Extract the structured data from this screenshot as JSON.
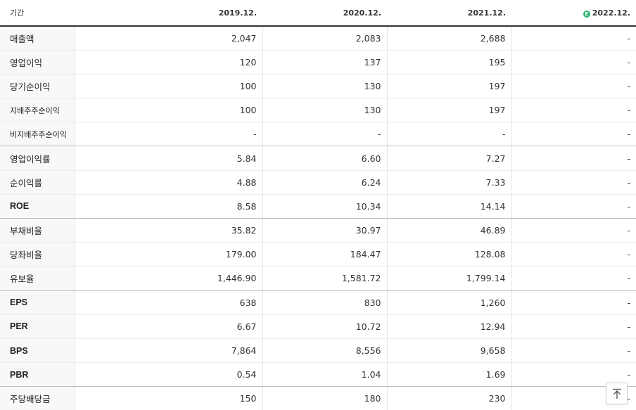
{
  "header": {
    "period_label": "기간",
    "columns": [
      "2019.12.",
      "2020.12.",
      "2021.12.",
      "2022.12."
    ],
    "estimate_badge": "E",
    "estimate_color": "#2bb673"
  },
  "rows": [
    {
      "label": "매출액",
      "values": [
        "2,047",
        "2,083",
        "2,688",
        "-"
      ]
    },
    {
      "label": "영업이익",
      "values": [
        "120",
        "137",
        "195",
        "-"
      ]
    },
    {
      "label": "당기순이익",
      "values": [
        "100",
        "130",
        "197",
        "-"
      ]
    },
    {
      "label": "지배주주순이익",
      "values": [
        "100",
        "130",
        "197",
        "-"
      ]
    },
    {
      "label": "비지배주주순이익",
      "values": [
        "-",
        "-",
        "-",
        "-"
      ]
    },
    {
      "label": "영업이익률",
      "values": [
        "5.84",
        "6.60",
        "7.27",
        "-"
      ]
    },
    {
      "label": "순이익률",
      "values": [
        "4.88",
        "6.24",
        "7.33",
        "-"
      ]
    },
    {
      "label": "ROE",
      "values": [
        "8.58",
        "10.34",
        "14.14",
        "-"
      ]
    },
    {
      "label": "부채비율",
      "values": [
        "35.82",
        "30.97",
        "46.89",
        "-"
      ]
    },
    {
      "label": "당좌비율",
      "values": [
        "179.00",
        "184.47",
        "128.08",
        "-"
      ]
    },
    {
      "label": "유보율",
      "values": [
        "1,446.90",
        "1,581.72",
        "1,799.14",
        "-"
      ]
    },
    {
      "label": "EPS",
      "values": [
        "638",
        "830",
        "1,260",
        "-"
      ]
    },
    {
      "label": "PER",
      "values": [
        "6.67",
        "10.72",
        "12.94",
        "-"
      ]
    },
    {
      "label": "BPS",
      "values": [
        "7,864",
        "8,556",
        "9,658",
        "-"
      ]
    },
    {
      "label": "PBR",
      "values": [
        "0.54",
        "1.04",
        "1.69",
        "-"
      ]
    },
    {
      "label": "주당배당금",
      "values": [
        "150",
        "180",
        "230",
        "-"
      ]
    }
  ],
  "scroll_top": {
    "icon": "arrow-up-to-line-icon"
  }
}
